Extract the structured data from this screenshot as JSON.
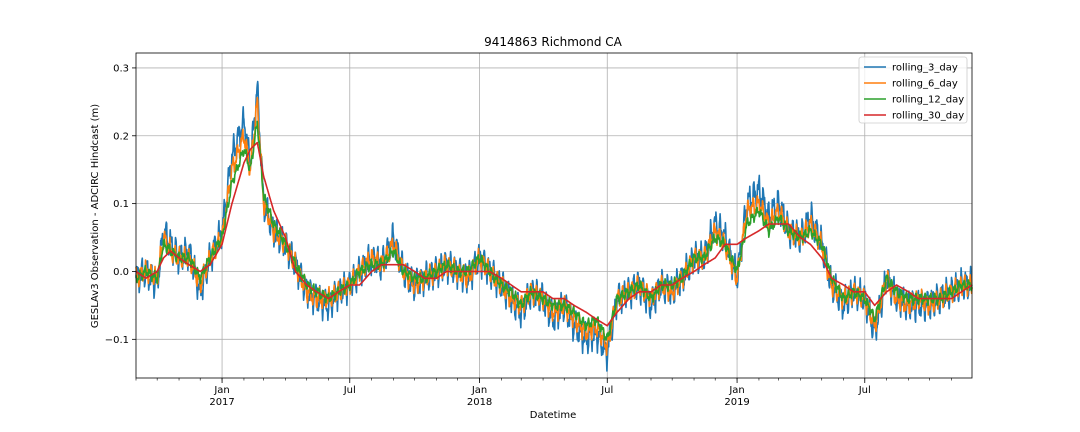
{
  "chart_data": {
    "type": "line",
    "title": "9414863 Richmond CA",
    "xlabel": "Datetime",
    "ylabel": "GESLAv3 Observation - ADCIRC Hindcast (m)",
    "xlim": [
      "2016-09-01",
      "2019-11-30"
    ],
    "ylim": [
      -0.157,
      0.322
    ],
    "grid": true,
    "legend_position": "top-right",
    "x_ticks": [
      {
        "date": "2017-01-01",
        "label": "Jan",
        "year": "2017"
      },
      {
        "date": "2017-07-01",
        "label": "Jul",
        "year": ""
      },
      {
        "date": "2018-01-01",
        "label": "Jan",
        "year": "2018"
      },
      {
        "date": "2018-07-01",
        "label": "Jul",
        "year": ""
      },
      {
        "date": "2019-01-01",
        "label": "Jan",
        "year": "2019"
      },
      {
        "date": "2019-07-01",
        "label": "Jul",
        "year": ""
      }
    ],
    "y_ticks": [
      {
        "value": -0.1,
        "label": "−0.1"
      },
      {
        "value": 0.0,
        "label": "0.0"
      },
      {
        "value": 0.1,
        "label": "0.1"
      },
      {
        "value": 0.2,
        "label": "0.2"
      },
      {
        "value": 0.3,
        "label": "0.3"
      }
    ],
    "anchor_dates": [
      "2016-09-01",
      "2016-09-15",
      "2016-10-01",
      "2016-10-10",
      "2016-10-20",
      "2016-11-01",
      "2016-11-15",
      "2016-12-01",
      "2016-12-15",
      "2017-01-01",
      "2017-01-15",
      "2017-02-01",
      "2017-02-10",
      "2017-02-20",
      "2017-03-01",
      "2017-03-15",
      "2017-04-01",
      "2017-04-15",
      "2017-05-01",
      "2017-05-15",
      "2017-06-01",
      "2017-06-15",
      "2017-07-01",
      "2017-07-15",
      "2017-08-01",
      "2017-08-15",
      "2017-09-01",
      "2017-09-15",
      "2017-10-01",
      "2017-10-15",
      "2017-11-01",
      "2017-11-15",
      "2017-12-01",
      "2017-12-15",
      "2018-01-01",
      "2018-01-15",
      "2018-02-01",
      "2018-02-15",
      "2018-03-01",
      "2018-03-15",
      "2018-04-01",
      "2018-04-15",
      "2018-05-01",
      "2018-05-15",
      "2018-06-01",
      "2018-06-15",
      "2018-07-01",
      "2018-07-15",
      "2018-08-01",
      "2018-08-15",
      "2018-09-01",
      "2018-09-15",
      "2018-10-01",
      "2018-10-15",
      "2018-11-01",
      "2018-11-15",
      "2018-12-01",
      "2018-12-15",
      "2019-01-01",
      "2019-01-15",
      "2019-02-01",
      "2019-02-15",
      "2019-03-01",
      "2019-03-15",
      "2019-04-01",
      "2019-04-15",
      "2019-05-01",
      "2019-05-15",
      "2019-06-01",
      "2019-06-15",
      "2019-07-01",
      "2019-07-15",
      "2019-08-01",
      "2019-08-15",
      "2019-09-01",
      "2019-09-15",
      "2019-10-01",
      "2019-10-15",
      "2019-11-01",
      "2019-11-15",
      "2019-11-30"
    ],
    "series": [
      {
        "name": "rolling_3_day",
        "color": "#1f77b4",
        "noise": 0.028,
        "values": [
          -0.01,
          0.0,
          -0.02,
          0.06,
          0.04,
          0.02,
          0.03,
          -0.03,
          0.02,
          0.06,
          0.17,
          0.22,
          0.16,
          0.27,
          0.1,
          0.06,
          0.04,
          0.01,
          -0.03,
          -0.04,
          -0.05,
          -0.03,
          -0.02,
          0.0,
          0.02,
          0.01,
          0.05,
          0.0,
          -0.02,
          -0.01,
          0.0,
          0.01,
          0.0,
          -0.01,
          0.02,
          0.0,
          -0.02,
          -0.04,
          -0.06,
          -0.03,
          -0.04,
          -0.07,
          -0.05,
          -0.08,
          -0.1,
          -0.09,
          -0.12,
          -0.04,
          -0.03,
          -0.02,
          -0.05,
          -0.02,
          -0.03,
          -0.01,
          0.02,
          0.02,
          0.07,
          0.05,
          -0.01,
          0.1,
          0.12,
          0.08,
          0.1,
          0.06,
          0.05,
          0.08,
          0.04,
          -0.02,
          -0.05,
          -0.03,
          -0.04,
          -0.09,
          -0.01,
          -0.04,
          -0.05,
          -0.05,
          -0.05,
          -0.04,
          -0.03,
          -0.02,
          -0.02
        ]
      },
      {
        "name": "rolling_6_day",
        "color": "#ff7f0e",
        "noise": 0.018,
        "values": [
          -0.01,
          0.0,
          -0.01,
          0.05,
          0.03,
          0.02,
          0.02,
          -0.02,
          0.02,
          0.05,
          0.15,
          0.2,
          0.15,
          0.25,
          0.1,
          0.06,
          0.04,
          0.01,
          -0.03,
          -0.04,
          -0.04,
          -0.03,
          -0.02,
          0.0,
          0.02,
          0.01,
          0.04,
          0.0,
          -0.02,
          -0.01,
          0.0,
          0.01,
          0.0,
          -0.01,
          0.02,
          0.0,
          -0.02,
          -0.04,
          -0.05,
          -0.03,
          -0.04,
          -0.06,
          -0.05,
          -0.07,
          -0.09,
          -0.08,
          -0.11,
          -0.04,
          -0.03,
          -0.02,
          -0.04,
          -0.02,
          -0.03,
          -0.01,
          0.02,
          0.02,
          0.06,
          0.04,
          -0.01,
          0.09,
          0.1,
          0.07,
          0.09,
          0.06,
          0.05,
          0.07,
          0.04,
          -0.02,
          -0.04,
          -0.03,
          -0.04,
          -0.08,
          -0.01,
          -0.04,
          -0.05,
          -0.04,
          -0.05,
          -0.04,
          -0.03,
          -0.02,
          -0.02
        ]
      },
      {
        "name": "rolling_12_day",
        "color": "#2ca02c",
        "noise": 0.01,
        "values": [
          -0.01,
          0.0,
          -0.01,
          0.04,
          0.03,
          0.02,
          0.02,
          -0.01,
          0.02,
          0.05,
          0.13,
          0.18,
          0.15,
          0.22,
          0.11,
          0.07,
          0.04,
          0.01,
          -0.02,
          -0.03,
          -0.04,
          -0.03,
          -0.02,
          0.0,
          0.01,
          0.01,
          0.03,
          0.0,
          -0.01,
          -0.01,
          0.0,
          0.01,
          0.0,
          0.0,
          0.02,
          0.0,
          -0.02,
          -0.03,
          -0.05,
          -0.03,
          -0.04,
          -0.05,
          -0.05,
          -0.06,
          -0.08,
          -0.07,
          -0.1,
          -0.04,
          -0.03,
          -0.02,
          -0.04,
          -0.02,
          -0.02,
          -0.01,
          0.02,
          0.02,
          0.05,
          0.04,
          0.0,
          0.07,
          0.09,
          0.06,
          0.08,
          0.06,
          0.05,
          0.06,
          0.04,
          -0.01,
          -0.04,
          -0.03,
          -0.04,
          -0.07,
          -0.01,
          -0.03,
          -0.04,
          -0.04,
          -0.04,
          -0.04,
          -0.03,
          -0.02,
          -0.02
        ]
      },
      {
        "name": "rolling_30_day",
        "color": "#d62728",
        "noise": 0.0,
        "values": [
          0.0,
          -0.01,
          0.0,
          0.02,
          0.03,
          0.02,
          0.01,
          0.0,
          0.01,
          0.04,
          0.1,
          0.16,
          0.18,
          0.19,
          0.14,
          0.09,
          0.05,
          0.0,
          -0.02,
          -0.03,
          -0.04,
          -0.03,
          -0.02,
          -0.02,
          0.0,
          0.01,
          0.01,
          0.01,
          0.0,
          -0.01,
          -0.01,
          0.0,
          0.0,
          0.0,
          0.0,
          0.0,
          -0.01,
          -0.02,
          -0.03,
          -0.03,
          -0.03,
          -0.04,
          -0.04,
          -0.05,
          -0.06,
          -0.07,
          -0.08,
          -0.06,
          -0.04,
          -0.03,
          -0.03,
          -0.02,
          -0.02,
          -0.01,
          0.0,
          0.01,
          0.02,
          0.04,
          0.04,
          0.05,
          0.06,
          0.07,
          0.07,
          0.07,
          0.05,
          0.04,
          0.02,
          -0.01,
          -0.02,
          -0.03,
          -0.03,
          -0.05,
          -0.03,
          -0.02,
          -0.03,
          -0.04,
          -0.04,
          -0.04,
          -0.04,
          -0.03,
          -0.02
        ]
      }
    ]
  }
}
